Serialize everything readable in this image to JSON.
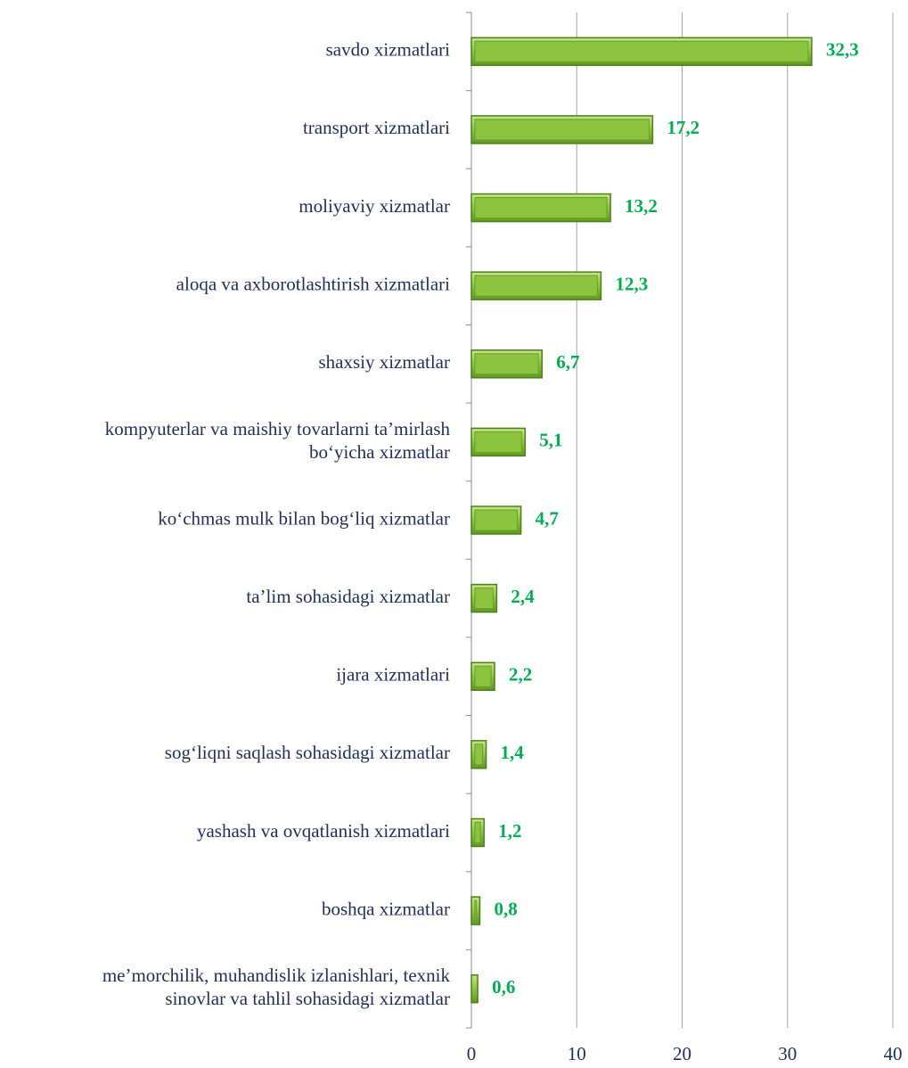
{
  "chart_data": {
    "type": "bar",
    "orientation": "horizontal",
    "categories": [
      "savdo xizmatlari",
      "transport xizmatlari",
      "moliyaviy xizmatlar",
      "aloqa va axborotlashtirish xizmatlari",
      "shaxsiy xizmatlar",
      "kompyuterlar va maishiy tovarlarni ta’mirlash\nbo‘yicha xizmatlar",
      "ko‘chmas mulk bilan bog‘liq xizmatlar",
      "ta’lim sohasidagi xizmatlar",
      "ijara xizmatlari",
      "sog‘liqni saqlash sohasidagi xizmatlar",
      "yashash va ovqatlanish xizmatlari",
      "boshqa xizmatlar",
      "me’morchilik, muhandislik izlanishlari, texnik\nsinovlar va tahlil sohasidagi xizmatlar"
    ],
    "values": [
      32.3,
      17.2,
      13.2,
      12.3,
      6.7,
      5.1,
      4.7,
      2.4,
      2.2,
      1.4,
      1.2,
      0.8,
      0.6
    ],
    "value_labels": [
      "32,3",
      "17,2",
      "13,2",
      "12,3",
      "6,7",
      "5,1",
      "4,7",
      "2,4",
      "2,2",
      "1,4",
      "1,2",
      "0,8",
      "0,6"
    ],
    "color": "#92c94a",
    "xlim": [
      0,
      40
    ],
    "xticks": [
      0,
      10,
      20,
      30,
      40
    ],
    "grid": true
  }
}
